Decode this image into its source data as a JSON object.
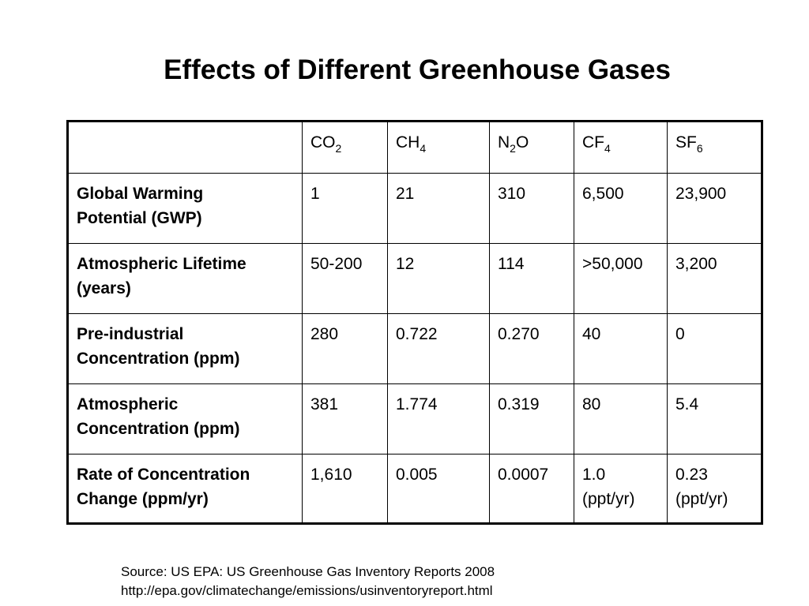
{
  "slide": {
    "title": "Effects of Different Greenhouse Gases"
  },
  "table": {
    "columns": [
      {
        "base": "CO",
        "sub": "2"
      },
      {
        "base": "CH",
        "sub": "4"
      },
      {
        "base": "N",
        "sub": "2",
        "suffix": "O"
      },
      {
        "base": "CF",
        "sub": "4"
      },
      {
        "base": "SF",
        "sub": "6"
      }
    ],
    "rows": [
      {
        "label_line1": "Global Warming",
        "label_line2": "Potential (GWP)",
        "cells": [
          {
            "line1": "1",
            "line2": ""
          },
          {
            "line1": "21",
            "line2": ""
          },
          {
            "line1": "310",
            "line2": ""
          },
          {
            "line1": "6,500",
            "line2": ""
          },
          {
            "line1": "23,900",
            "line2": ""
          }
        ]
      },
      {
        "label_line1": "Atmospheric Lifetime",
        "label_line2": "(years)",
        "cells": [
          {
            "line1": "50-200",
            "line2": ""
          },
          {
            "line1": "12",
            "line2": ""
          },
          {
            "line1": "114",
            "line2": ""
          },
          {
            "line1": ">50,000",
            "line2": ""
          },
          {
            "line1": "3,200",
            "line2": ""
          }
        ]
      },
      {
        "label_line1": "Pre-industrial",
        "label_line2": "Concentration (ppm)",
        "cells": [
          {
            "line1": "280",
            "line2": ""
          },
          {
            "line1": "0.722",
            "line2": ""
          },
          {
            "line1": "0.270",
            "line2": ""
          },
          {
            "line1": "40",
            "line2": ""
          },
          {
            "line1": "0",
            "line2": ""
          }
        ]
      },
      {
        "label_line1": "Atmospheric",
        "label_line2": "Concentration (ppm)",
        "cells": [
          {
            "line1": "381",
            "line2": ""
          },
          {
            "line1": "1.774",
            "line2": ""
          },
          {
            "line1": "0.319",
            "line2": ""
          },
          {
            "line1": "80",
            "line2": ""
          },
          {
            "line1": "5.4",
            "line2": ""
          }
        ]
      },
      {
        "label_line1": "Rate of Concentration",
        "label_line2": "Change (ppm/yr)",
        "cells": [
          {
            "line1": "1,610",
            "line2": ""
          },
          {
            "line1": "0.005",
            "line2": ""
          },
          {
            "line1": "0.0007",
            "line2": ""
          },
          {
            "line1": "1.0",
            "line2": "(ppt/yr)"
          },
          {
            "line1": "0.23",
            "line2": "(ppt/yr)"
          }
        ]
      }
    ]
  },
  "source": {
    "line1": "Source:  US EPA: US Greenhouse Gas Inventory Reports 2008",
    "line2": "http://epa.gov/climatechange/emissions/usinventoryreport.html"
  }
}
